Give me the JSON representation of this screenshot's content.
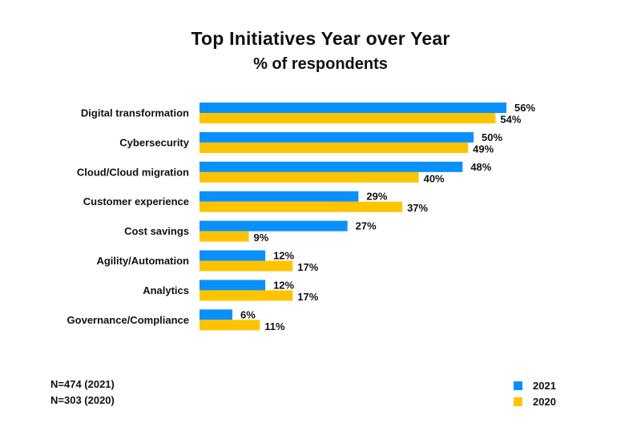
{
  "chart_data": {
    "type": "bar",
    "orientation": "horizontal",
    "title": "Top Initiatives Year over Year",
    "subtitle": "% of respondents",
    "categories": [
      "Digital transformation",
      "Cybersecurity",
      "Cloud/Cloud migration",
      "Customer experience",
      "Cost savings",
      "Agility/Automation",
      "Analytics",
      "Governance/Compliance"
    ],
    "series": [
      {
        "name": "2021",
        "color": "#0A90FA",
        "values": [
          56,
          50,
          48,
          29,
          27,
          12,
          12,
          6
        ]
      },
      {
        "name": "2020",
        "color": "#FFC300",
        "values": [
          54,
          49,
          40,
          37,
          9,
          17,
          17,
          11
        ]
      }
    ],
    "value_suffix": "%",
    "xlabel": "",
    "ylabel": "",
    "xlim": [
      0,
      56
    ],
    "grid": false,
    "legend_position": "bottom-right"
  },
  "notes": [
    "N=474 (2021)",
    "N=303 (2020)"
  ],
  "legend": [
    {
      "label": "2021",
      "color": "#0A90FA"
    },
    {
      "label": "2020",
      "color": "#FFC300"
    }
  ]
}
